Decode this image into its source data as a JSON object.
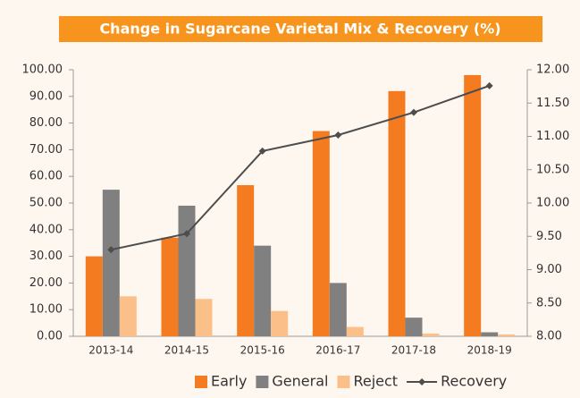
{
  "chart_data": {
    "type": "bar",
    "title": "Change in Sugarcane Varietal Mix & Recovery (%)",
    "categories": [
      "2013-14",
      "2014-15",
      "2015-16",
      "2016-17",
      "2017-18",
      "2018-19"
    ],
    "series": [
      {
        "name": "Early",
        "color": "#f47b20",
        "values": [
          30,
          37,
          56.7,
          77,
          92,
          98
        ]
      },
      {
        "name": "General",
        "color": "#808080",
        "values": [
          55,
          49,
          34,
          20,
          7,
          1.5
        ]
      },
      {
        "name": "Reject",
        "color": "#fbbf8a",
        "values": [
          15,
          14,
          9.5,
          3.5,
          1,
          0.7
        ]
      },
      {
        "name": "Recovery",
        "type": "line",
        "axis": "y2",
        "color": "#4d4d4d",
        "values": [
          9.3,
          9.54,
          10.78,
          11.02,
          11.36,
          11.76
        ]
      }
    ],
    "ylim": [
      0,
      100
    ],
    "yticks": [
      {
        "value": 0,
        "label": "0.00"
      },
      {
        "value": 10,
        "label": "10.00"
      },
      {
        "value": 20,
        "label": "20.00"
      },
      {
        "value": 30,
        "label": "30.00"
      },
      {
        "value": 40,
        "label": "40.00"
      },
      {
        "value": 50,
        "label": "50.00"
      },
      {
        "value": 60,
        "label": "60.00"
      },
      {
        "value": 70,
        "label": "70.00"
      },
      {
        "value": 80,
        "label": "80.00"
      },
      {
        "value": 90,
        "label": "90.00"
      },
      {
        "value": 100,
        "label": "100.00"
      }
    ],
    "y2lim": [
      8,
      12
    ],
    "y2ticks": [
      {
        "value": 8,
        "label": "8.00"
      },
      {
        "value": 8.5,
        "label": "8.50"
      },
      {
        "value": 9,
        "label": "9.00"
      },
      {
        "value": 9.5,
        "label": "9.50"
      },
      {
        "value": 10,
        "label": "10.00"
      },
      {
        "value": 10.5,
        "label": "10.50"
      },
      {
        "value": 11,
        "label": "11.00"
      },
      {
        "value": 11.5,
        "label": "11.50"
      },
      {
        "value": 12,
        "label": "12.00"
      }
    ],
    "legend": "bottom"
  }
}
